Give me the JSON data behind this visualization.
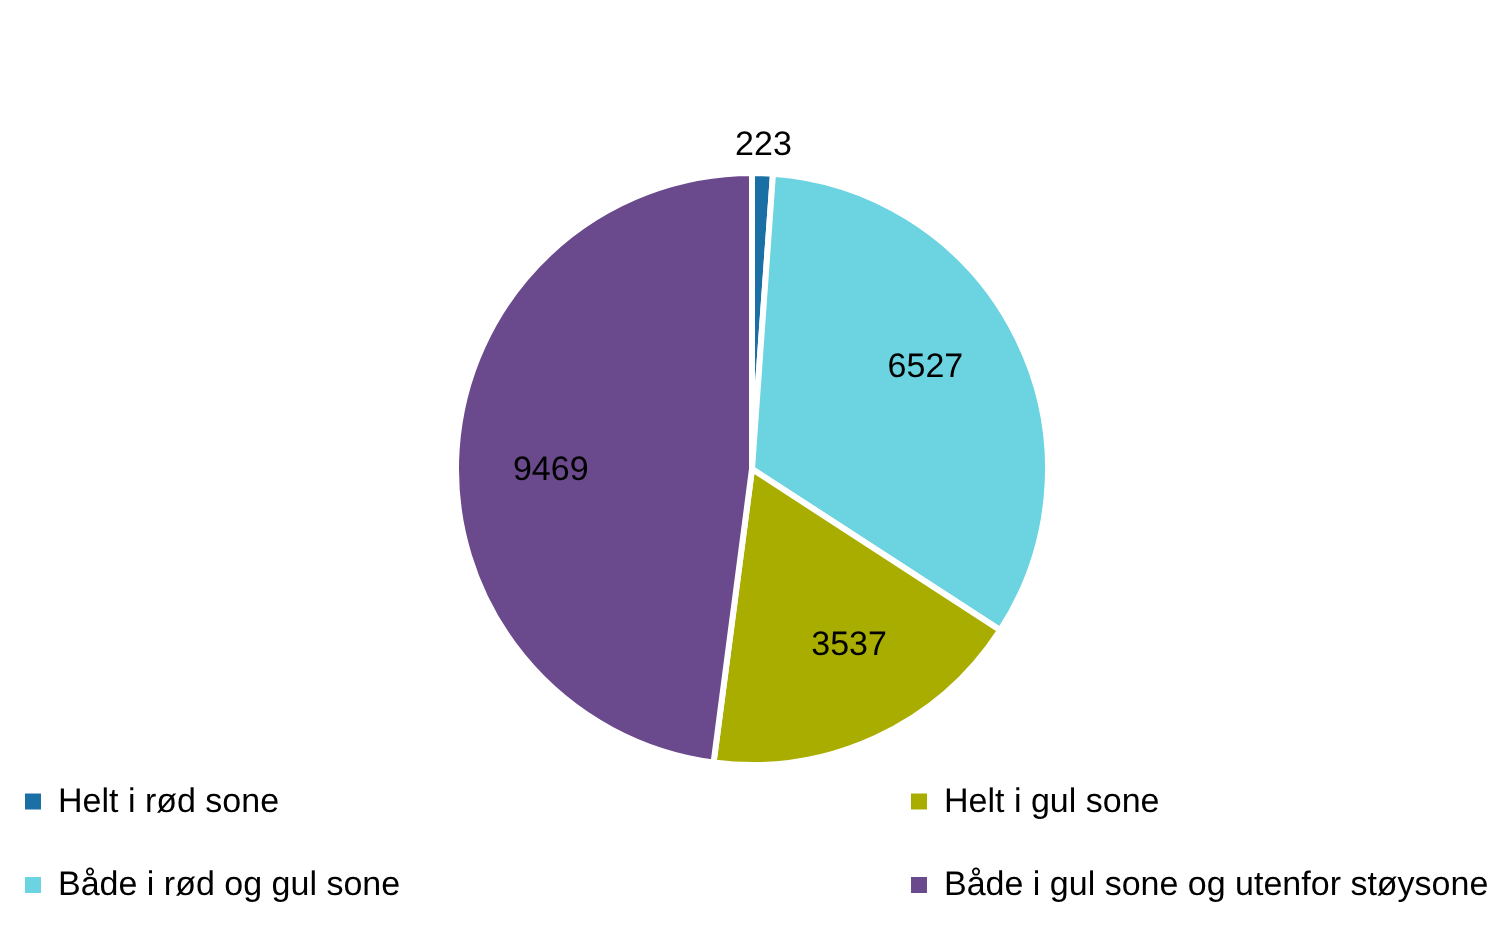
{
  "chart_data": {
    "type": "pie",
    "categories": [
      "Helt i rød sone",
      "Både i rød og gul sone",
      "Helt i gul sone",
      "Både i gul sone og utenfor støysone"
    ],
    "values": [
      223,
      6527,
      3537,
      9469
    ],
    "colors": [
      "#1a6fa5",
      "#6bd4e0",
      "#a8ad00",
      "#6a4a8c"
    ],
    "data_labels": true,
    "legend": "bottom"
  }
}
